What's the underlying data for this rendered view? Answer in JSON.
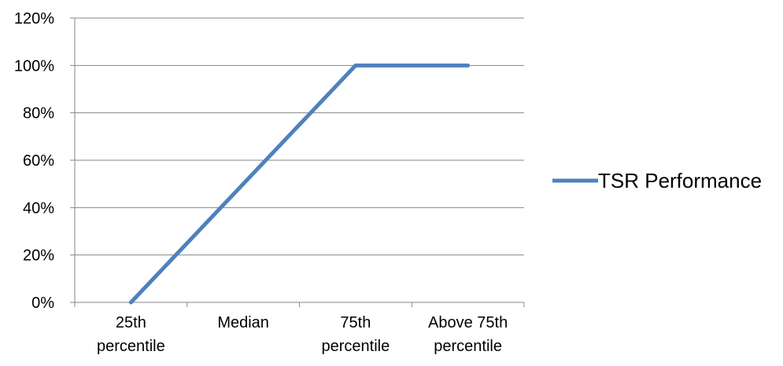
{
  "chart_data": {
    "type": "line",
    "categories": [
      [
        "25th",
        "percentile"
      ],
      [
        "Median"
      ],
      [
        "75th",
        "percentile"
      ],
      [
        "Above 75th",
        "percentile"
      ]
    ],
    "series": [
      {
        "name": "TSR Performance",
        "values": [
          0,
          50,
          100,
          100
        ],
        "color": "#4f81bd"
      }
    ],
    "ylim": [
      0,
      120
    ],
    "yticks": [
      0,
      20,
      40,
      60,
      80,
      100,
      120
    ],
    "ytick_suffix": "%",
    "grid": true,
    "legend_position": "right",
    "title": "",
    "xlabel": "",
    "ylabel": ""
  }
}
